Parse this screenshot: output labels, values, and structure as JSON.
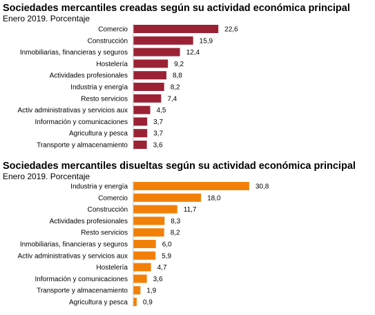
{
  "colors": {
    "created": "#9b2235",
    "dissolved": "#f28008"
  },
  "chart_data": [
    {
      "type": "bar",
      "orientation": "horizontal",
      "title": "Sociedades mercantiles creadas según su actividad económica principal",
      "subtitle": "Enero 2019. Porcentaje",
      "categories": [
        "Comercio",
        "Construcción",
        "Inmobiliarias, financieras y seguros",
        "Hostelería",
        "Actividades profesionales",
        "Industria y energía",
        "Resto servicios",
        "Activ administrativas y servicios aux",
        "Información y comunicaciones",
        "Agricultura y pesca",
        "Transporte y almacenamiento"
      ],
      "values": [
        22.6,
        15.9,
        12.4,
        9.2,
        8.8,
        8.2,
        7.4,
        4.5,
        3.7,
        3.7,
        3.6
      ],
      "value_labels": [
        "22,6",
        "15,9",
        "12,4",
        "9,2",
        "8,8",
        "8,2",
        "7,4",
        "4,5",
        "3,7",
        "3,7",
        "3,6"
      ],
      "xlim": [
        0,
        32
      ],
      "grid": false,
      "color": "#9b2235"
    },
    {
      "type": "bar",
      "orientation": "horizontal",
      "title": "Sociedades mercantiles disueltas según su actividad económica principal",
      "subtitle": "Enero 2019. Porcentaje",
      "categories": [
        "Industria y energía",
        "Comercio",
        "Construcción",
        "Actividades profesionales",
        "Resto servicios",
        "Inmobiliarias, financieras y seguros",
        "Activ administrativas y servicios aux",
        "Hostelería",
        "Información y comunicaciones",
        "Transporte y almacenamiento",
        "Agricultura y pesca"
      ],
      "values": [
        30.8,
        18.0,
        11.7,
        8.3,
        8.2,
        6.0,
        5.9,
        4.7,
        3.6,
        1.9,
        0.9
      ],
      "value_labels": [
        "30,8",
        "18,0",
        "11,7",
        "8,3",
        "8,2",
        "6,0",
        "5,9",
        "4,7",
        "3,6",
        "1,9",
        "0,9"
      ],
      "xlim": [
        0,
        32
      ],
      "grid": false,
      "color": "#f28008"
    }
  ]
}
